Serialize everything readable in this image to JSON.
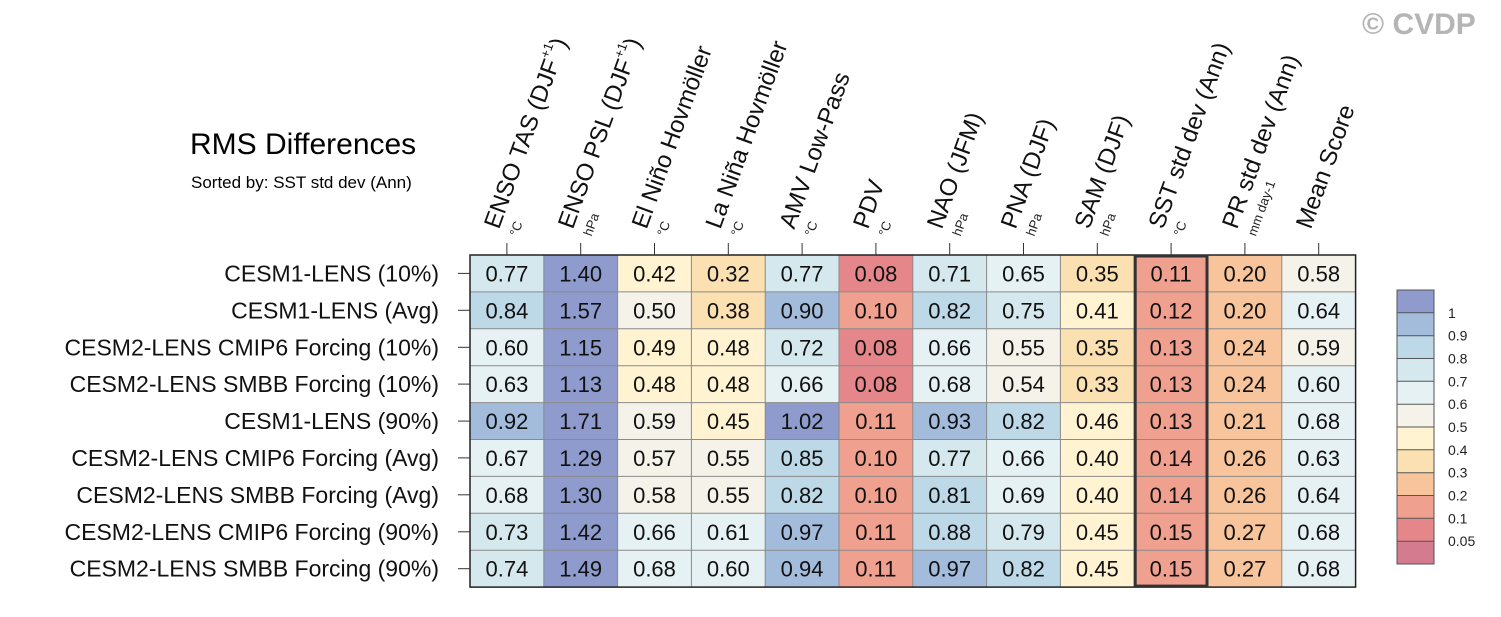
{
  "copyright": "© CVDP",
  "chart_data": {
    "type": "heatmap",
    "title": "RMS Differences",
    "subtitle": "Sorted by: SST std dev (Ann)",
    "columns": [
      {
        "name": "ENSO TAS (DJF+1)",
        "base": "ENSO TAS (DJF",
        "sup": "+1",
        "close": ")",
        "unit": "°C"
      },
      {
        "name": "ENSO PSL (DJF+1)",
        "base": "ENSO PSL (DJF",
        "sup": "+1",
        "close": ")",
        "unit": "hPa"
      },
      {
        "name": "El Niño Hovmöller",
        "base": "El Niño Hovmöller",
        "sup": "",
        "close": "",
        "unit": "°C"
      },
      {
        "name": "La Niña Hovmöller",
        "base": "La Niña Hovmöller",
        "sup": "",
        "close": "",
        "unit": "°C"
      },
      {
        "name": "AMV Low-Pass",
        "base": "AMV Low-Pass",
        "sup": "",
        "close": "",
        "unit": "°C"
      },
      {
        "name": "PDV",
        "base": "PDV",
        "sup": "",
        "close": "",
        "unit": "°C"
      },
      {
        "name": "NAO (JFM)",
        "base": "NAO (JFM)",
        "sup": "",
        "close": "",
        "unit": "hPa"
      },
      {
        "name": "PNA (DJF)",
        "base": "PNA (DJF)",
        "sup": "",
        "close": "",
        "unit": "hPa"
      },
      {
        "name": "SAM (DJF)",
        "base": "SAM (DJF)",
        "sup": "",
        "close": "",
        "unit": "hPa"
      },
      {
        "name": "SST std dev (Ann)",
        "base": "SST std dev (Ann)",
        "sup": "",
        "close": "",
        "unit": "°C"
      },
      {
        "name": "PR std dev (Ann)",
        "base": "PR std dev (Ann)",
        "sup": "",
        "close": "",
        "unit": "mm day-1"
      },
      {
        "name": "Mean Score",
        "base": "Mean Score",
        "sup": "",
        "close": "",
        "unit": ""
      }
    ],
    "rows": [
      "CESM1-LENS (10%)",
      "CESM1-LENS (Avg)",
      "CESM2-LENS CMIP6 Forcing (10%)",
      "CESM2-LENS SMBB Forcing (10%)",
      "CESM1-LENS (90%)",
      "CESM2-LENS CMIP6 Forcing (Avg)",
      "CESM2-LENS SMBB Forcing (Avg)",
      "CESM2-LENS CMIP6 Forcing (90%)",
      "CESM2-LENS SMBB Forcing (90%)"
    ],
    "values": [
      [
        0.77,
        1.4,
        0.42,
        0.32,
        0.77,
        0.08,
        0.71,
        0.65,
        0.35,
        0.11,
        0.2,
        0.58
      ],
      [
        0.84,
        1.57,
        0.5,
        0.38,
        0.9,
        0.1,
        0.82,
        0.75,
        0.41,
        0.12,
        0.2,
        0.64
      ],
      [
        0.6,
        1.15,
        0.49,
        0.48,
        0.72,
        0.08,
        0.66,
        0.55,
        0.35,
        0.13,
        0.24,
        0.59
      ],
      [
        0.63,
        1.13,
        0.48,
        0.48,
        0.66,
        0.08,
        0.68,
        0.54,
        0.33,
        0.13,
        0.24,
        0.6
      ],
      [
        0.92,
        1.71,
        0.59,
        0.45,
        1.02,
        0.11,
        0.93,
        0.82,
        0.46,
        0.13,
        0.21,
        0.68
      ],
      [
        0.67,
        1.29,
        0.57,
        0.55,
        0.85,
        0.1,
        0.77,
        0.66,
        0.4,
        0.14,
        0.26,
        0.63
      ],
      [
        0.68,
        1.3,
        0.58,
        0.55,
        0.82,
        0.1,
        0.81,
        0.69,
        0.4,
        0.14,
        0.26,
        0.64
      ],
      [
        0.73,
        1.42,
        0.66,
        0.61,
        0.97,
        0.11,
        0.88,
        0.79,
        0.45,
        0.15,
        0.27,
        0.68
      ],
      [
        0.74,
        1.49,
        0.68,
        0.6,
        0.94,
        0.11,
        0.97,
        0.82,
        0.45,
        0.15,
        0.27,
        0.68
      ]
    ],
    "value_labels": [
      [
        "0.77",
        "1.40",
        "0.42",
        "0.32",
        "0.77",
        "0.08",
        "0.71",
        "0.65",
        "0.35",
        "0.11",
        "0.20",
        "0.58"
      ],
      [
        "0.84",
        "1.57",
        "0.50",
        "0.38",
        "0.90",
        "0.10",
        "0.82",
        "0.75",
        "0.41",
        "0.12",
        "0.20",
        "0.64"
      ],
      [
        "0.60",
        "1.15",
        "0.49",
        "0.48",
        "0.72",
        "0.08",
        "0.66",
        "0.55",
        "0.35",
        "0.13",
        "0.24",
        "0.59"
      ],
      [
        "0.63",
        "1.13",
        "0.48",
        "0.48",
        "0.66",
        "0.08",
        "0.68",
        "0.54",
        "0.33",
        "0.13",
        "0.24",
        "0.60"
      ],
      [
        "0.92",
        "1.71",
        "0.59",
        "0.45",
        "1.02",
        "0.11",
        "0.93",
        "0.82",
        "0.46",
        "0.13",
        "0.21",
        "0.68"
      ],
      [
        "0.67",
        "1.29",
        "0.57",
        "0.55",
        "0.85",
        "0.10",
        "0.77",
        "0.66",
        "0.40",
        "0.14",
        "0.26",
        "0.63"
      ],
      [
        "0.68",
        "1.30",
        "0.58",
        "0.55",
        "0.82",
        "0.10",
        "0.81",
        "0.69",
        "0.40",
        "0.14",
        "0.26",
        "0.64"
      ],
      [
        "0.73",
        "1.42",
        "0.66",
        "0.61",
        "0.97",
        "0.11",
        "0.88",
        "0.79",
        "0.45",
        "0.15",
        "0.27",
        "0.68"
      ],
      [
        "0.74",
        "1.49",
        "0.68",
        "0.60",
        "0.94",
        "0.11",
        "0.97",
        "0.82",
        "0.45",
        "0.15",
        "0.27",
        "0.68"
      ]
    ],
    "highlight_column": "SST std dev (Ann)",
    "colorbar": {
      "levels": [
        0.05,
        0.1,
        0.2,
        0.3,
        0.4,
        0.5,
        0.6,
        0.7,
        0.8,
        0.9,
        1
      ],
      "labels": [
        "0.05",
        "0.1",
        "0.2",
        "0.3",
        "0.4",
        "0.5",
        "0.6",
        "0.7",
        "0.8",
        "0.9",
        "1"
      ],
      "colors": [
        "#d47b8f",
        "#e5878a",
        "#efa08e",
        "#f7c49c",
        "#fbe1b2",
        "#fff3d1",
        "#f4f2e9",
        "#e6f1f3",
        "#d4e8ee",
        "#bdd8e6",
        "#a4bcdc",
        "#8e9bcc"
      ]
    }
  }
}
